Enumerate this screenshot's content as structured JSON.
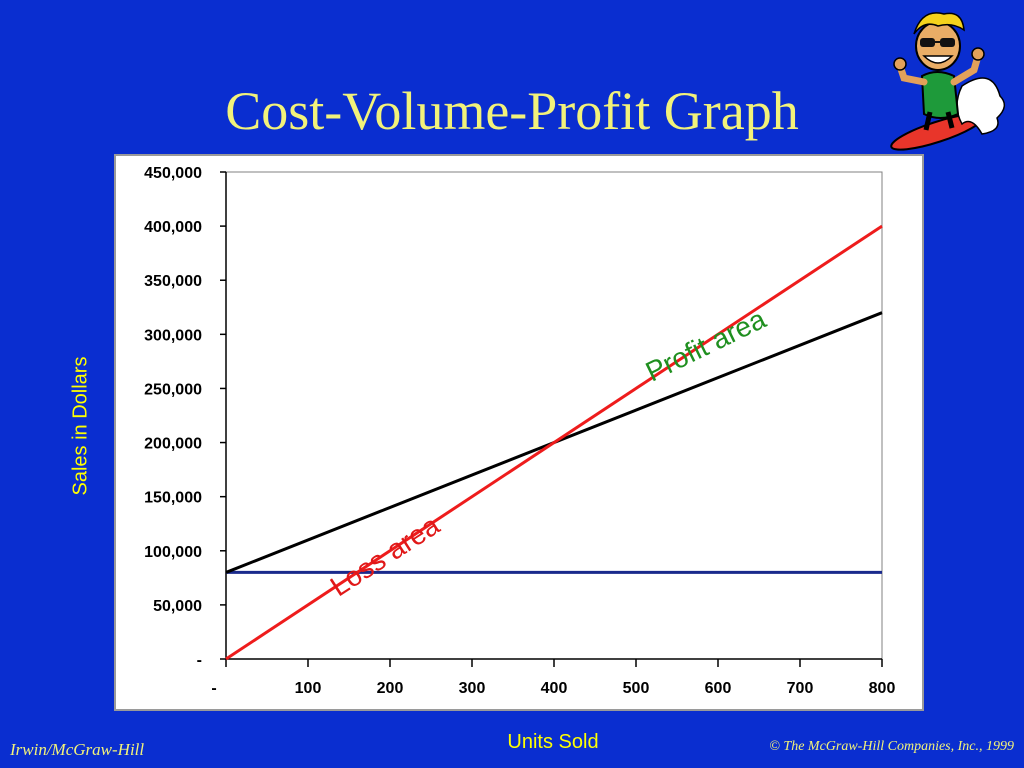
{
  "slide": {
    "title": "Cost-Volume-Profit Graph",
    "footer_left": "Irwin/McGraw-Hill",
    "footer_right": "© The McGraw-Hill Companies, Inc., 1999"
  },
  "colors": {
    "background": "#0a2ed0",
    "title": "#f2f27a",
    "axis_label": "#ffff00",
    "sales_line": "#ee1c1c",
    "total_cost_line": "#000000",
    "fixed_cost_line": "#1a2a8c",
    "profit_label": "#1f8f1f",
    "loss_label": "#e01818"
  },
  "chart_data": {
    "type": "line",
    "xlabel": "Units Sold",
    "ylabel": "Sales in Dollars",
    "xlim": [
      0,
      800
    ],
    "ylim": [
      0,
      450000
    ],
    "xticks": [
      "-",
      "100",
      "200",
      "300",
      "400",
      "500",
      "600",
      "700",
      "800"
    ],
    "yticks": [
      "-",
      "50,000",
      "100,000",
      "150,000",
      "200,000",
      "250,000",
      "300,000",
      "350,000",
      "400,000",
      "450,000"
    ],
    "grid": false,
    "series": [
      {
        "key": "sales",
        "x": [
          0,
          800
        ],
        "y": [
          0,
          400000
        ]
      },
      {
        "key": "total_cost",
        "x": [
          0,
          800
        ],
        "y": [
          80000,
          320000
        ]
      },
      {
        "key": "fixed_cost",
        "x": [
          0,
          800
        ],
        "y": [
          80000,
          80000
        ]
      }
    ],
    "annotations": [
      {
        "key": "profit",
        "text": "Profit area",
        "x": 590,
        "y": 282000,
        "angle": -26
      },
      {
        "key": "loss",
        "text": "Loss area",
        "x": 200,
        "y": 88000,
        "angle": -33
      }
    ]
  }
}
